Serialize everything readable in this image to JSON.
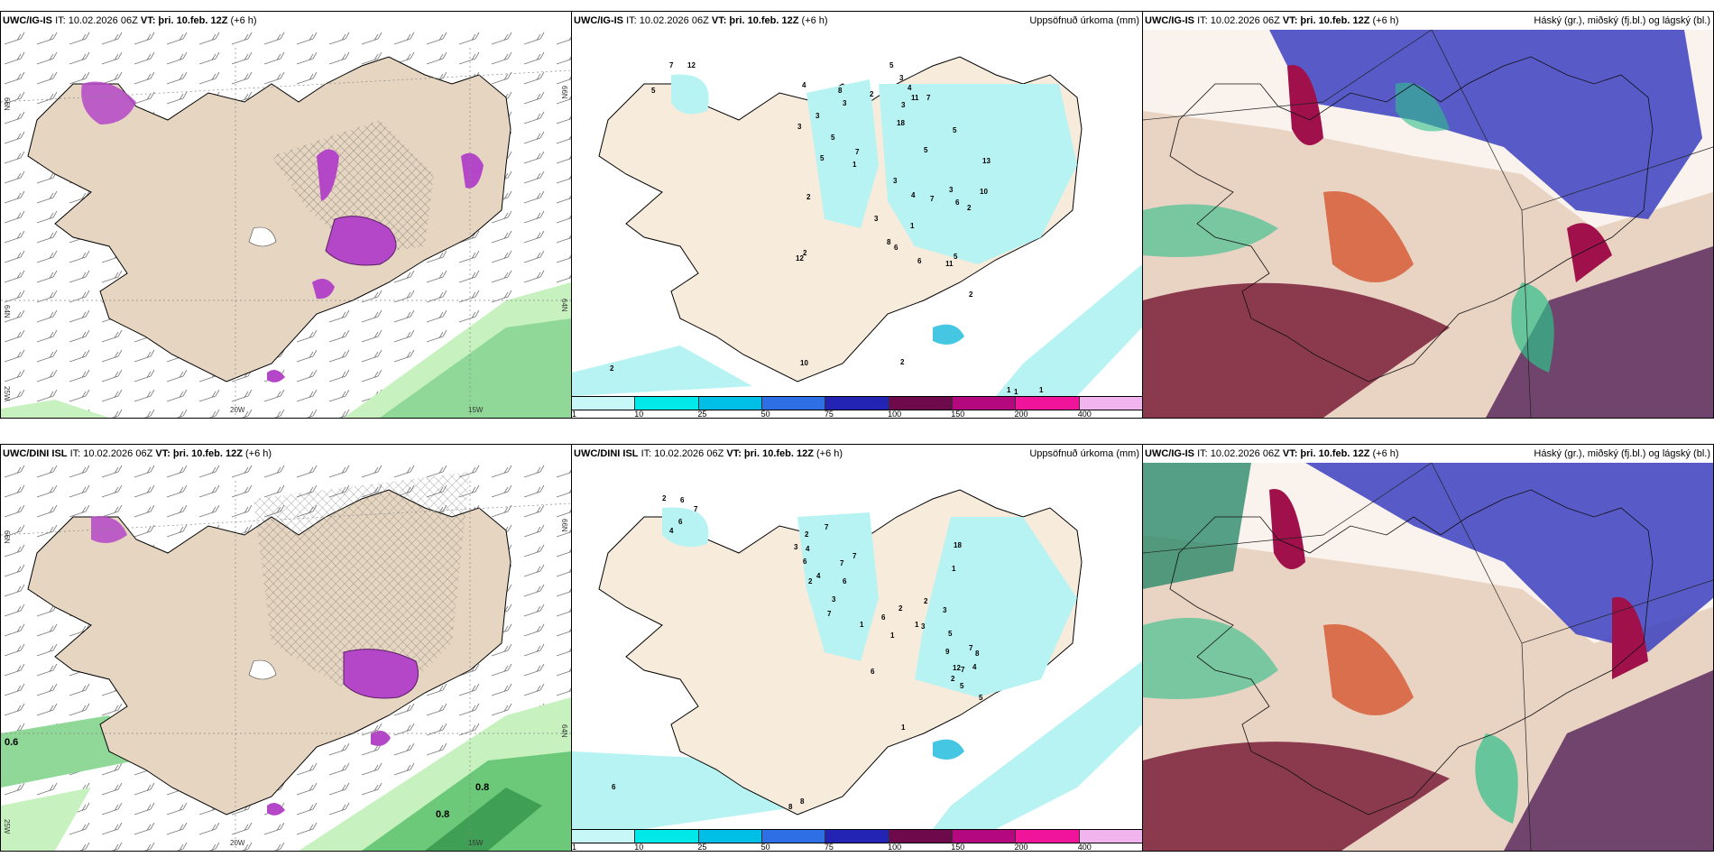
{
  "panels": {
    "top_left": {
      "model": "UWC/IG-IS",
      "it": "IT: 10.02.2026 06Z",
      "vt_label": "VT:",
      "vt": "þri. 10.feb. 12Z",
      "lead": "(+6 h)",
      "ax_lat_top": "66N",
      "ax_lat_bot": "64N",
      "ax_lon_left": "20W",
      "ax_lon_right": "15W",
      "ax_25w": "25W",
      "ax_66n_r": "66N",
      "ax_64n_r": "64N"
    },
    "top_mid": {
      "model": "UWC/IG-IS",
      "it": "IT: 10.02.2026 06Z",
      "vt_label": "VT:",
      "vt": "þri. 10.feb. 12Z",
      "lead": "(+6 h)",
      "right_title": "Uppsöfnuð úrkoma (mm)"
    },
    "top_right": {
      "model": "UWC/IG-IS",
      "it": "IT: 10.02.2026 06Z",
      "vt_label": "VT:",
      "vt": "þri. 10.feb. 12Z",
      "lead": "(+6 h)",
      "right_title": "Háský (gr.), miðský (fj.bl.) og lágský (bl.)"
    },
    "bot_left": {
      "model": "UWC/DINI ISL",
      "it": "IT: 10.02.2026 06Z",
      "vt_label": "VT:",
      "vt": "þri. 10.feb. 12Z",
      "lead": "(+6 h)",
      "ax_lat_top": "66N",
      "ax_lat_bot": "64N",
      "ax_lon_left": "20W",
      "ax_lon_right": "15W",
      "ax_25w": "25W",
      "ax_66n_r": "66N",
      "ax_64n_r": "64N",
      "extra_06": "0.6",
      "extra_08a": "0.8",
      "extra_08b": "0.8"
    },
    "bot_mid": {
      "model": "UWC/DINI ISL",
      "it": "IT: 10.02.2026 06Z",
      "vt_label": "VT:",
      "vt": "þri. 10.feb. 12Z",
      "lead": "(+6 h)",
      "right_title": "Uppsöfnuð úrkoma (mm)"
    },
    "bot_right": {
      "model": "UWC/IG-IS",
      "it": "IT: 10.02.2026 06Z",
      "vt_label": "VT:",
      "vt": "þri. 10.feb. 12Z",
      "lead": "(+6 h)",
      "right_title": "Háský (gr.), miðský (fj.bl.) og lágský (bl.)"
    }
  },
  "precip_scale": {
    "ticks": [
      "1",
      "10",
      "25",
      "50",
      "75",
      "100",
      "150",
      "200",
      "400"
    ],
    "colors": [
      "#c8f7f7",
      "#00e8e8",
      "#00bfe6",
      "#2e6fe6",
      "#2323b4",
      "#6e0a4b",
      "#b4087e",
      "#f0149b",
      "#f2b4ee"
    ]
  },
  "precip_labels_top": [
    "7",
    "12",
    "5",
    "4",
    "8",
    "2",
    "3",
    "3",
    "5",
    "3",
    "4",
    "11",
    "3",
    "7",
    "5",
    "18",
    "3",
    "5",
    "7",
    "5",
    "1",
    "5",
    "3",
    "4",
    "7",
    "13",
    "3",
    "6",
    "2",
    "1",
    "3",
    "10",
    "2",
    "8",
    "6",
    "6",
    "11",
    "5",
    "2",
    "2",
    "12",
    "10",
    "2",
    "2",
    "1",
    "1",
    "1"
  ],
  "precip_labels_bot": [
    "2",
    "6",
    "7",
    "6",
    "4",
    "7",
    "2",
    "3",
    "4",
    "6",
    "4",
    "2",
    "7",
    "7",
    "6",
    "18",
    "3",
    "7",
    "1",
    "2",
    "3",
    "2",
    "6",
    "1",
    "1",
    "3",
    "5",
    "7",
    "8",
    "4",
    "7",
    "5",
    "6",
    "12",
    "9",
    "2",
    "5",
    "1",
    "1",
    "6",
    "8",
    "8"
  ],
  "colors": {
    "land": "#f7ebdc",
    "land_sat": "#e6d6c1",
    "sea": "#ffffff",
    "cyan_light": "#b8f3f3",
    "purple": "#b446c8",
    "green_light": "#c7f2c0",
    "green_mid": "#5fbf6a"
  }
}
